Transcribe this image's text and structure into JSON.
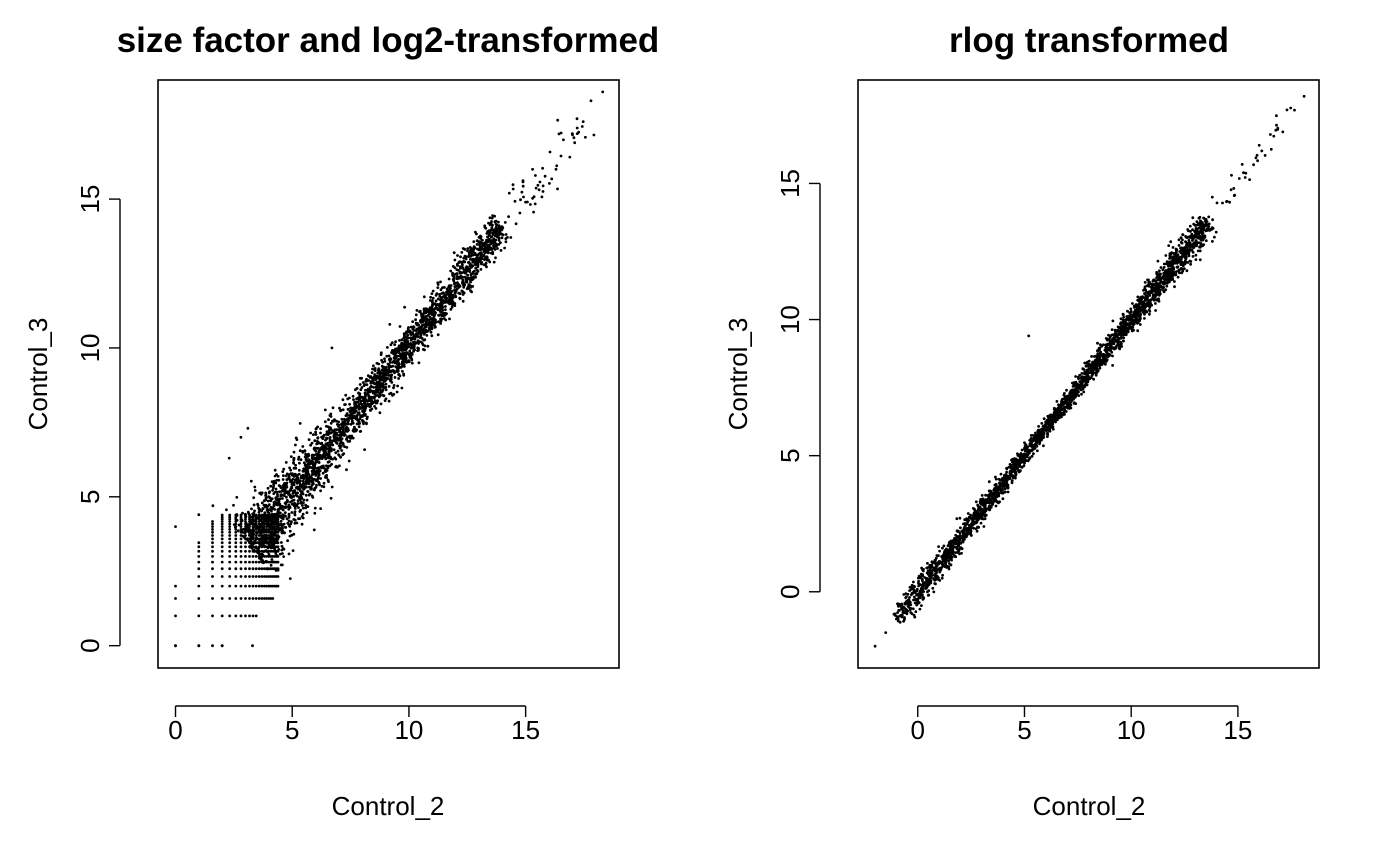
{
  "chart_data": [
    {
      "type": "scatter",
      "title": "size factor and log2-transformed",
      "xlabel": "Control_2",
      "ylabel": "Control_3",
      "xlim": [
        -0.75,
        19.0
      ],
      "ylim": [
        -0.75,
        19.0
      ],
      "xticks": [
        0,
        5,
        10,
        15
      ],
      "yticks": [
        0,
        5,
        10,
        15
      ],
      "xtick_labels": [
        "0",
        "5",
        "10",
        "15"
      ],
      "ytick_labels": [
        "0",
        "5",
        "10",
        "15"
      ],
      "grid": false,
      "point_color": "#000000",
      "trend": "dense cloud along y = x, from about 3 to 14 on both axes, with discrete striped low-count values below 4 and a few sparse points up to about 18.3",
      "highlight_points": [
        {
          "x": 0,
          "y": 0
        },
        {
          "x": 1,
          "y": 0
        },
        {
          "x": 2,
          "y": 0
        },
        {
          "x": 3.3,
          "y": 0
        },
        {
          "x": 0,
          "y": 4.0
        },
        {
          "x": 1,
          "y": 4.4
        },
        {
          "x": 1.6,
          "y": 4.7
        },
        {
          "x": 2.3,
          "y": 6.3
        },
        {
          "x": 2.8,
          "y": 7.0
        },
        {
          "x": 3.1,
          "y": 7.3
        },
        {
          "x": 6.7,
          "y": 10.0
        },
        {
          "x": 14.3,
          "y": 15.2
        },
        {
          "x": 15.0,
          "y": 14.9
        },
        {
          "x": 15.3,
          "y": 16.0
        },
        {
          "x": 16.3,
          "y": 16.0
        },
        {
          "x": 17.0,
          "y": 17.2
        },
        {
          "x": 17.2,
          "y": 17.7
        },
        {
          "x": 17.8,
          "y": 18.3
        },
        {
          "x": 18.3,
          "y": 18.6
        }
      ]
    },
    {
      "type": "scatter",
      "title": "rlog transformed",
      "xlabel": "Control_2",
      "ylabel": "Control_3",
      "xlim": [
        -2.8,
        18.8
      ],
      "ylim": [
        -2.8,
        18.8
      ],
      "xticks": [
        0,
        5,
        10,
        15
      ],
      "yticks": [
        0,
        5,
        10,
        15
      ],
      "xtick_labels": [
        "0",
        "5",
        "10",
        "15"
      ],
      "ytick_labels": [
        "0",
        "5",
        "10",
        "15"
      ],
      "grid": false,
      "point_color": "#000000",
      "trend": "narrow band along y = x from about -2 to 18.2 on both axes",
      "highlight_points": [
        {
          "x": -2.0,
          "y": -2.0
        },
        {
          "x": -1.5,
          "y": -1.5
        },
        {
          "x": -1.0,
          "y": -1.0
        },
        {
          "x": 5.2,
          "y": 9.4
        },
        {
          "x": 13.8,
          "y": 14.5
        },
        {
          "x": 14.7,
          "y": 15.3
        },
        {
          "x": 15.2,
          "y": 15.7
        },
        {
          "x": 16.0,
          "y": 16.4
        },
        {
          "x": 17.3,
          "y": 17.7
        },
        {
          "x": 18.1,
          "y": 18.2
        }
      ]
    }
  ]
}
